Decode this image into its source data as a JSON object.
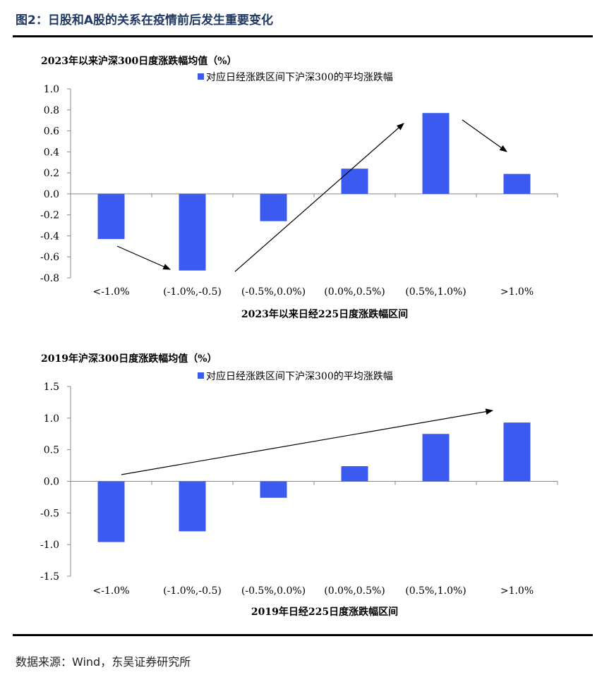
{
  "figure": {
    "title": "图2：日股和A股的关系在疫情前后发生重要变化",
    "source": "数据来源：Wind，东吴证券研究所",
    "bar_color": "#3b5bf0"
  },
  "chart_data": [
    {
      "type": "bar",
      "title": "2023年以来沪深300日度涨跌幅均值（%）",
      "legend": "对应日经涨跌区间下沪深300的平均涨跌幅",
      "xlabel": "2023年以来日经225日度涨跌幅区间",
      "categories": [
        "<-1.0%",
        "(-1.0%,-0.5)",
        "(-0.5%,0.0%)",
        "(0.0%,0.5%)",
        "(0.5%,1.0%)",
        ">1.0%"
      ],
      "values": [
        -0.43,
        -0.73,
        -0.26,
        0.24,
        0.77,
        0.19
      ],
      "ylim": [
        -0.8,
        1.0
      ],
      "yticks": [
        "1.0",
        "0.8",
        "0.6",
        "0.4",
        "0.2",
        "0.0",
        "-0.2",
        "-0.4",
        "-0.6",
        "-0.8"
      ]
    },
    {
      "type": "bar",
      "title": "2019年沪深300日度涨跌幅均值（%）",
      "legend": "对应日经涨跌区间下沪深300的平均涨跌幅",
      "xlabel": "2019年日经225日度涨跌幅区间",
      "categories": [
        "<-1.0%",
        "(-1.0%,-0.5)",
        "(-0.5%,0.0%)",
        "(0.0%,0.5%)",
        "(0.5%,1.0%)",
        ">1.0%"
      ],
      "values": [
        -0.96,
        -0.79,
        -0.26,
        0.24,
        0.75,
        0.93
      ],
      "ylim": [
        -1.5,
        1.5
      ],
      "yticks": [
        "1.5",
        "1.0",
        "0.5",
        "0.0",
        "-0.5",
        "-1.0",
        "-1.5"
      ]
    }
  ]
}
